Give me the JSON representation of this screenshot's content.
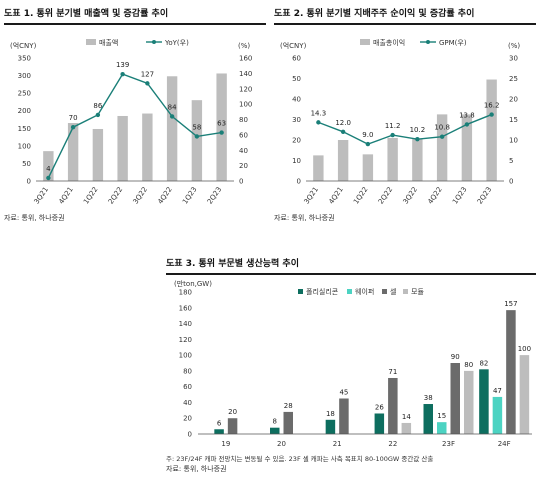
{
  "charts": [
    {
      "id": "c1",
      "title": "도표 1. 통위 분기별 매출액 및 증감률 추이",
      "left_unit": "(억CNY)",
      "right_unit": "(%)",
      "source": "자료: 통위, 하나증권",
      "chart_data": {
        "type": "bar+line",
        "categories": [
          "3Q21",
          "4Q21",
          "1Q22",
          "2Q22",
          "3Q22",
          "4Q22",
          "1Q23",
          "2Q23"
        ],
        "series": [
          {
            "name": "매출액",
            "type": "bar",
            "axis": "left",
            "values": [
              85,
              165,
              148,
              185,
              192,
              298,
              230,
              306
            ]
          },
          {
            "name": "YoY(우)",
            "type": "line",
            "axis": "right",
            "values": [
              4,
              70,
              86,
              139,
              127,
              84,
              58,
              63
            ],
            "labels": [
              "4",
              "70",
              "86",
              "139",
              "127",
              "84",
              "58",
              "63"
            ]
          }
        ],
        "left_ylim": [
          0,
          350
        ],
        "left_ticks": [
          "0",
          "50",
          "100",
          "150",
          "200",
          "250",
          "300",
          "350"
        ],
        "right_ylim": [
          0,
          160
        ],
        "right_ticks": [
          "0",
          "20",
          "40",
          "60",
          "80",
          "100",
          "120",
          "140",
          "160"
        ],
        "legend_placement": "top-center"
      }
    },
    {
      "id": "c2",
      "title": "도표 2. 통위 분기별 지배주주 순이익 및 증감률 추이",
      "left_unit": "(억CNY)",
      "right_unit": "(%)",
      "source": "자료: 통위, 하나증권",
      "chart_data": {
        "type": "bar+line",
        "categories": [
          "3Q21",
          "4Q21",
          "1Q22",
          "2Q22",
          "3Q22",
          "4Q22",
          "1Q23",
          "2Q23"
        ],
        "series": [
          {
            "name": "매출총이익",
            "type": "bar",
            "axis": "left",
            "values": [
              12.5,
              20,
              13,
              21,
              20.5,
              32.5,
              32.5,
              49.5
            ]
          },
          {
            "name": "GPM(우)",
            "type": "line",
            "axis": "right",
            "values": [
              14.3,
              12.0,
              9.0,
              11.2,
              10.2,
              10.8,
              13.8,
              16.2
            ],
            "labels": [
              "14.3",
              "12.0",
              "9.0",
              "11.2",
              "10.2",
              "10.8",
              "13.8",
              "16.2"
            ]
          }
        ],
        "left_ylim": [
          0,
          60
        ],
        "left_ticks": [
          "0",
          "10",
          "20",
          "30",
          "40",
          "50",
          "60"
        ],
        "right_ylim": [
          0,
          30
        ],
        "right_ticks": [
          "0",
          "5",
          "10",
          "15",
          "20",
          "25",
          "30"
        ],
        "legend_placement": "top-center"
      }
    },
    {
      "id": "c3",
      "title": "도표 3. 통위 부문별 생산능력 추이",
      "left_unit": "(만ton,GW)",
      "footnote": "주: 23F/24F 캐파 전망치는 변동될 수 있음. 23F 셀 캐파는 사측 목표치 80-100GW 중간값 산출",
      "source": "자료: 통위, 하나증권",
      "chart_data": {
        "type": "bar",
        "categories": [
          "19",
          "20",
          "21",
          "22",
          "23F",
          "24F"
        ],
        "series": [
          {
            "name": "폴리실리콘",
            "color": "#0d6e5f",
            "values": [
              6,
              8,
              18,
              26,
              38,
              82
            ],
            "labels": [
              "6",
              "8",
              "18",
              "26",
              "38",
              "82"
            ]
          },
          {
            "name": "웨이퍼",
            "color": "#4cd3c2",
            "values": [
              null,
              null,
              null,
              null,
              15,
              47
            ],
            "labels": [
              "",
              "",
              "",
              "",
              "15",
              "47"
            ]
          },
          {
            "name": "셀",
            "color": "#6b6b6b",
            "values": [
              20,
              28,
              45,
              71,
              90,
              157
            ],
            "labels": [
              "20",
              "28",
              "45",
              "71",
              "90",
              "157"
            ]
          },
          {
            "name": "모듈",
            "color": "#bdbdbd",
            "values": [
              null,
              null,
              null,
              14,
              80,
              100
            ],
            "labels": [
              "",
              "",
              "",
              "14",
              "80",
              "100"
            ]
          }
        ],
        "ylim": [
          0,
          180
        ],
        "ticks": [
          "0",
          "20",
          "40",
          "60",
          "80",
          "100",
          "120",
          "140",
          "160",
          "180"
        ],
        "legend_placement": "top-left"
      }
    }
  ],
  "colors": {
    "bar_gray": "#bdbdbd",
    "line_teal": "#1a7f78",
    "axis": "#555555"
  }
}
